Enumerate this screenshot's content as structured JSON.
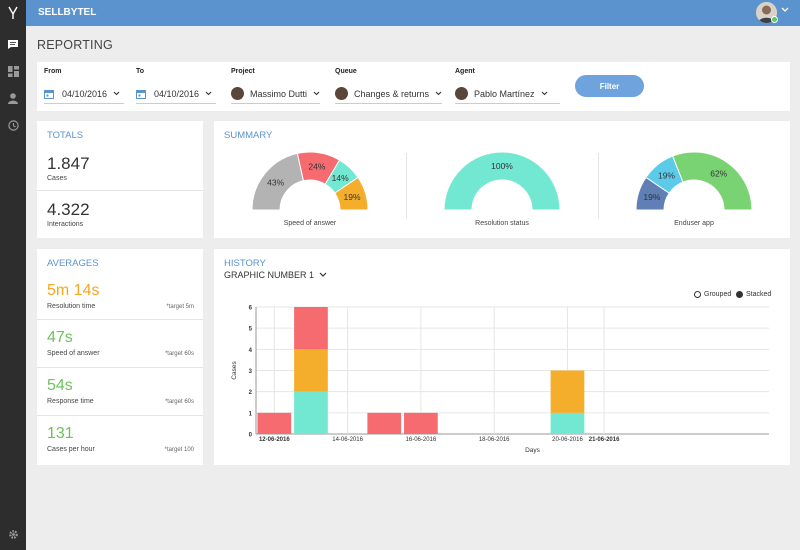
{
  "app": {
    "brand": "SELLBYTEL"
  },
  "sidebar": {
    "icons": [
      "chat-icon",
      "dashboard-icon",
      "user-icon",
      "history-icon"
    ],
    "bottom_icon": "gear-icon"
  },
  "page": {
    "title": "REPORTING"
  },
  "filters": {
    "from": {
      "label": "From",
      "value": "04/10/2016"
    },
    "to": {
      "label": "To",
      "value": "04/10/2016"
    },
    "project": {
      "label": "Project",
      "value": "Massimo Dutti"
    },
    "queue": {
      "label": "Queue",
      "value": "Changes & returns"
    },
    "agent": {
      "label": "Agent",
      "value": "Pablo Martínez"
    },
    "button": "Filter"
  },
  "totals": {
    "title": "TOTALS",
    "items": [
      {
        "value": "1.847",
        "label": "Cases"
      },
      {
        "value": "4.322",
        "label": "Interactions"
      }
    ]
  },
  "summary": {
    "title": "SUMMARY",
    "gauges": [
      {
        "caption": "Speed of answer",
        "segments": [
          {
            "label": "43%",
            "value": 43,
            "color": "#b3b3b3"
          },
          {
            "label": "24%",
            "value": 24,
            "color": "#f56b6f"
          },
          {
            "label": "14%",
            "value": 14,
            "color": "#72e8d2"
          },
          {
            "label": "19%",
            "value": 19,
            "color": "#f5ae2c"
          }
        ]
      },
      {
        "caption": "Resolution status",
        "segments": [
          {
            "label": "100%",
            "value": 100,
            "color": "#72e8d2"
          }
        ]
      },
      {
        "caption": "Enduser app",
        "segments": [
          {
            "label": "19%",
            "value": 19,
            "color": "#5f7fb5"
          },
          {
            "label": "19%",
            "value": 19,
            "color": "#5ccbea"
          },
          {
            "label": "62%",
            "value": 62,
            "color": "#7ad373"
          }
        ]
      }
    ]
  },
  "averages": {
    "title": "AVERAGES",
    "items": [
      {
        "value": "5m 14s",
        "label": "Resolution time",
        "target": "*target 5m",
        "color": "#f5a623"
      },
      {
        "value": "47s",
        "label": "Speed of answer",
        "target": "*target 60s",
        "color": "#6cc35a"
      },
      {
        "value": "54s",
        "label": "Response time",
        "target": "*target 60s",
        "color": "#6cc35a"
      },
      {
        "value": "131",
        "label": "Cases per hour",
        "target": "*target 100",
        "color": "#6cc35a"
      }
    ]
  },
  "history": {
    "title": "HISTORY",
    "graph_select": "GRAPHIC NUMBER 1",
    "legend": [
      {
        "label": "Grouped",
        "selected": false
      },
      {
        "label": "Stacked",
        "selected": true
      }
    ]
  },
  "chart_data": {
    "type": "bar",
    "stacked": true,
    "xlabel": "Days",
    "ylabel": "Cases",
    "ylim": [
      0,
      6
    ],
    "yticks": [
      0,
      1,
      2,
      3,
      4,
      5,
      6
    ],
    "x_tick_labels": [
      {
        "label": "12-06-2016",
        "pos": 0,
        "bold": true
      },
      {
        "label": "14-06-2016",
        "pos": 2,
        "bold": false
      },
      {
        "label": "16-06-2016",
        "pos": 4,
        "bold": false
      },
      {
        "label": "18-06-2016",
        "pos": 6,
        "bold": false
      },
      {
        "label": "20-06-2016",
        "pos": 8,
        "bold": false
      },
      {
        "label": "21-06-2016",
        "pos": 9,
        "bold": true
      }
    ],
    "bars": [
      {
        "pos": 0,
        "segments": [
          {
            "value": 1,
            "color": "#f56b6f"
          }
        ]
      },
      {
        "pos": 1,
        "segments": [
          {
            "value": 2,
            "color": "#72e8d2"
          },
          {
            "value": 2,
            "color": "#f5ae2c"
          },
          {
            "value": 2,
            "color": "#f56b6f"
          }
        ]
      },
      {
        "pos": 3,
        "segments": [
          {
            "value": 1,
            "color": "#f56b6f"
          }
        ]
      },
      {
        "pos": 4,
        "segments": [
          {
            "value": 1,
            "color": "#f56b6f"
          }
        ]
      },
      {
        "pos": 8,
        "segments": [
          {
            "value": 1,
            "color": "#72e8d2"
          },
          {
            "value": 2,
            "color": "#f5ae2c"
          }
        ]
      }
    ]
  }
}
